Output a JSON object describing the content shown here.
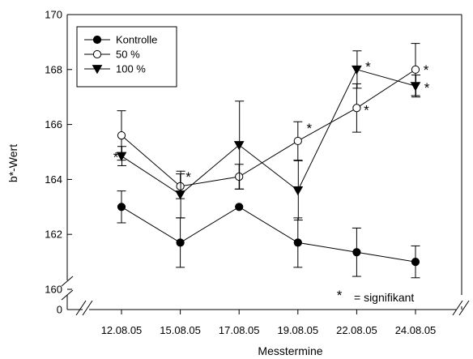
{
  "chart_data": {
    "type": "line",
    "xlabel": "Messtermine",
    "ylabel": "b*-Wert",
    "categories": [
      "12.08.05",
      "15.08.05",
      "17.08.05",
      "19.08.05",
      "22.08.05",
      "24.08.05"
    ],
    "ylim": [
      160,
      170
    ],
    "yticks": [
      "160",
      "162",
      "164",
      "166",
      "168",
      "170"
    ],
    "ybreak_label": "0",
    "legend_position": "top-left",
    "series": [
      {
        "name": "Kontrolle",
        "marker": "filled-circle",
        "values": [
          163.0,
          161.7,
          163.0,
          161.7,
          161.35,
          161.0
        ],
        "err": [
          0.58,
          0.9,
          null,
          0.9,
          0.88,
          0.58
        ],
        "significant": [
          false,
          false,
          false,
          false,
          false,
          false
        ]
      },
      {
        "name": "50 %",
        "marker": "open-circle",
        "values": [
          165.6,
          163.75,
          164.1,
          165.4,
          166.6,
          168.0
        ],
        "err": [
          0.9,
          0.45,
          0.45,
          0.7,
          0.88,
          0.95
        ],
        "significant": [
          false,
          true,
          false,
          true,
          true,
          true
        ]
      },
      {
        "name": "100 %",
        "marker": "filled-triangle-down",
        "values": [
          164.85,
          163.45,
          165.25,
          163.6,
          168.0,
          167.4
        ],
        "err": [
          0.35,
          0.85,
          1.6,
          1.08,
          0.68,
          0.4
        ],
        "significant": [
          true,
          false,
          false,
          false,
          true,
          true
        ]
      }
    ],
    "significance_symbol": "*",
    "significance_label": "= signifikant"
  }
}
